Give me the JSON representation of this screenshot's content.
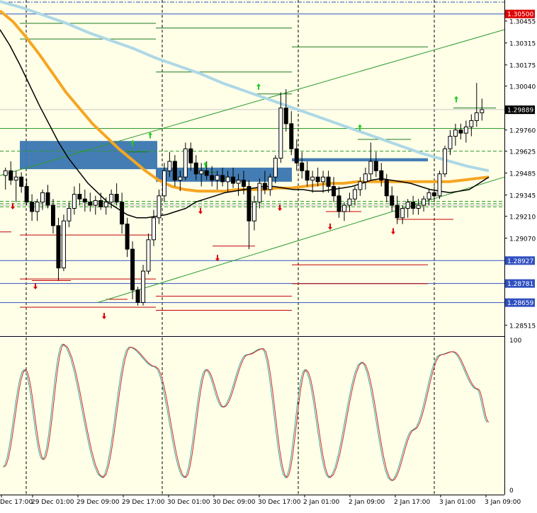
{
  "chart_data": {
    "type": "candlestick",
    "colors": {
      "background": "#FFFFE8",
      "bull_body": "#FFFFFF",
      "bear_body": "#000000",
      "wick": "#000000",
      "ma_fast": "#000000",
      "ma_mid": "#F5A623",
      "ma_slow": "#ADD8E6",
      "zone": "#3A76B0",
      "support_line": "#C00000",
      "resistance_line": "#1E7A1E",
      "hline_blue": "#3050C0",
      "trend_line": "#2E9A2E",
      "up_arrow": "#22CC22",
      "down_arrow": "#DD0000",
      "stoch_main": "#DD2222",
      "stoch_signal": "#33A8A0",
      "price_badge_red": "#DD0000",
      "price_badge_blue": "#3050C0",
      "price_badge_black": "#000000"
    },
    "price_axis": {
      "ylim": [
        1.2845,
        1.3058
      ],
      "ticks": [
        "1.30455",
        "1.30315",
        "1.30175",
        "1.30040",
        "1.29760",
        "1.29625",
        "1.29485",
        "1.29345",
        "1.29210",
        "1.29070",
        "1.28515"
      ],
      "badges": [
        {
          "label": "1.30500",
          "value": 1.305,
          "style": "red"
        },
        {
          "label": "1.29889",
          "value": 1.29889,
          "style": "black"
        },
        {
          "label": "1.28927",
          "value": 1.28927,
          "style": "blue"
        },
        {
          "label": "1.28781",
          "value": 1.28781,
          "style": "blue"
        },
        {
          "label": "1.28659",
          "value": 1.28659,
          "style": "blue"
        }
      ]
    },
    "time_axis": {
      "labels": [
        "Dec 17:00",
        "29 Dec 01:00",
        "29 Dec 09:00",
        "29 Dec 17:00",
        "30 Dec 01:00",
        "30 Dec 09:00",
        "30 Dec 17:00",
        "2 Jan 01:00",
        "2 Jan 09:00",
        "2 Jan 17:00",
        "3 Jan 01:00",
        "3 Jan 09:00"
      ]
    },
    "stochastic": {
      "ylim": [
        0,
        100
      ],
      "ticks": [
        "100",
        "0"
      ]
    },
    "candles": [
      [
        1.2947,
        1.2952,
        1.2938,
        1.295
      ],
      [
        1.295,
        1.2956,
        1.2941,
        1.2944
      ],
      [
        1.2944,
        1.295,
        1.293,
        1.2946
      ],
      [
        1.2946,
        1.2949,
        1.2936,
        1.294
      ],
      [
        1.294,
        1.2945,
        1.2928,
        1.293
      ],
      [
        1.293,
        1.2935,
        1.2918,
        1.2924
      ],
      [
        1.2924,
        1.2932,
        1.2918,
        1.293
      ],
      [
        1.293,
        1.2938,
        1.2925,
        1.2936
      ],
      [
        1.2936,
        1.2941,
        1.2926,
        1.2928
      ],
      [
        1.2928,
        1.2932,
        1.291,
        1.2915
      ],
      [
        1.2915,
        1.292,
        1.288,
        1.2888
      ],
      [
        1.2888,
        1.2922,
        1.2886,
        1.2918
      ],
      [
        1.2918,
        1.293,
        1.2914,
        1.2926
      ],
      [
        1.2926,
        1.294,
        1.2922,
        1.2935
      ],
      [
        1.2935,
        1.2942,
        1.2928,
        1.2932
      ],
      [
        1.2932,
        1.2938,
        1.2924,
        1.293
      ],
      [
        1.293,
        1.2936,
        1.2924,
        1.2928
      ],
      [
        1.2928,
        1.2934,
        1.2922,
        1.2931
      ],
      [
        1.2931,
        1.2936,
        1.2925,
        1.2927
      ],
      [
        1.2927,
        1.2933,
        1.2922,
        1.293
      ],
      [
        1.293,
        1.2938,
        1.2926,
        1.2935
      ],
      [
        1.2935,
        1.2942,
        1.2928,
        1.293
      ],
      [
        1.293,
        1.2936,
        1.291,
        1.2916
      ],
      [
        1.2916,
        1.292,
        1.2895,
        1.29
      ],
      [
        1.29,
        1.2905,
        1.2868,
        1.2874
      ],
      [
        1.2874,
        1.2876,
        1.2864,
        1.2866
      ],
      [
        1.2866,
        1.289,
        1.2864,
        1.2886
      ],
      [
        1.2886,
        1.291,
        1.2884,
        1.2906
      ],
      [
        1.2906,
        1.2925,
        1.2902,
        1.292
      ],
      [
        1.292,
        1.2938,
        1.2916,
        1.2934
      ],
      [
        1.2934,
        1.2955,
        1.293,
        1.295
      ],
      [
        1.295,
        1.2962,
        1.2946,
        1.2956
      ],
      [
        1.2956,
        1.296,
        1.294,
        1.2944
      ],
      [
        1.2944,
        1.295,
        1.2937,
        1.2946
      ],
      [
        1.2946,
        1.2968,
        1.2944,
        1.2964
      ],
      [
        1.2964,
        1.2968,
        1.295,
        1.2955
      ],
      [
        1.2955,
        1.296,
        1.2944,
        1.2948
      ],
      [
        1.2948,
        1.2955,
        1.294,
        1.295
      ],
      [
        1.295,
        1.2956,
        1.2944,
        1.2947
      ],
      [
        1.2947,
        1.2953,
        1.294,
        1.2944
      ],
      [
        1.2944,
        1.295,
        1.2938,
        1.2947
      ],
      [
        1.2947,
        1.2952,
        1.294,
        1.2943
      ],
      [
        1.2943,
        1.295,
        1.2936,
        1.2946
      ],
      [
        1.2946,
        1.2952,
        1.2939,
        1.2942
      ],
      [
        1.2942,
        1.2948,
        1.2934,
        1.2944
      ],
      [
        1.2944,
        1.295,
        1.2935,
        1.294
      ],
      [
        1.294,
        1.2944,
        1.29,
        1.2918
      ],
      [
        1.2918,
        1.2934,
        1.2912,
        1.293
      ],
      [
        1.293,
        1.2945,
        1.2926,
        1.2942
      ],
      [
        1.2942,
        1.295,
        1.2935,
        1.2938
      ],
      [
        1.2938,
        1.2948,
        1.2934,
        1.2946
      ],
      [
        1.2946,
        1.296,
        1.2942,
        1.2958
      ],
      [
        1.2958,
        1.3,
        1.2955,
        1.299
      ],
      [
        1.299,
        1.3002,
        1.2975,
        1.298
      ],
      [
        1.298,
        1.2988,
        1.296,
        1.2964
      ],
      [
        1.2964,
        1.297,
        1.295,
        1.2955
      ],
      [
        1.2955,
        1.2962,
        1.2945,
        1.295
      ],
      [
        1.295,
        1.2956,
        1.294,
        1.2944
      ],
      [
        1.2944,
        1.295,
        1.2936,
        1.2946
      ],
      [
        1.2946,
        1.2952,
        1.294,
        1.2943
      ],
      [
        1.2943,
        1.295,
        1.2936,
        1.2946
      ],
      [
        1.2946,
        1.295,
        1.2936,
        1.294
      ],
      [
        1.294,
        1.2946,
        1.293,
        1.2934
      ],
      [
        1.2934,
        1.294,
        1.292,
        1.2924
      ],
      [
        1.2924,
        1.293,
        1.2918,
        1.2928
      ],
      [
        1.2928,
        1.2936,
        1.2924,
        1.2932
      ],
      [
        1.2932,
        1.294,
        1.2928,
        1.2938
      ],
      [
        1.2938,
        1.2946,
        1.2934,
        1.2943
      ],
      [
        1.2943,
        1.2952,
        1.2938,
        1.2948
      ],
      [
        1.2948,
        1.2968,
        1.2944,
        1.2956
      ],
      [
        1.2956,
        1.2962,
        1.2946,
        1.295
      ],
      [
        1.295,
        1.2955,
        1.294,
        1.2944
      ],
      [
        1.2944,
        1.2948,
        1.293,
        1.2934
      ],
      [
        1.2934,
        1.294,
        1.2924,
        1.2928
      ],
      [
        1.2928,
        1.2934,
        1.2916,
        1.292
      ],
      [
        1.292,
        1.2928,
        1.2916,
        1.2926
      ],
      [
        1.2926,
        1.2932,
        1.292,
        1.293
      ],
      [
        1.293,
        1.2934,
        1.2922,
        1.2926
      ],
      [
        1.2926,
        1.2932,
        1.2922,
        1.2928
      ],
      [
        1.2928,
        1.2934,
        1.2924,
        1.2932
      ],
      [
        1.2932,
        1.2938,
        1.2928,
        1.2936
      ],
      [
        1.2936,
        1.294,
        1.293,
        1.2934
      ],
      [
        1.2934,
        1.295,
        1.2932,
        1.2948
      ],
      [
        1.2948,
        1.2966,
        1.2946,
        1.2964
      ],
      [
        1.2964,
        1.2976,
        1.296,
        1.2972
      ],
      [
        1.2972,
        1.298,
        1.2966,
        1.2976
      ],
      [
        1.2976,
        1.298,
        1.297,
        1.2974
      ],
      [
        1.2974,
        1.2982,
        1.2968,
        1.2978
      ],
      [
        1.2978,
        1.2986,
        1.2972,
        1.2982
      ],
      [
        1.2982,
        1.3006,
        1.2978,
        1.2987
      ],
      [
        1.2987,
        1.2996,
        1.2982,
        1.2989
      ]
    ],
    "ma_fast": [
      1.304,
      1.303,
      1.3018,
      1.3005,
      1.2992,
      1.298,
      1.2968,
      1.2958,
      1.295,
      1.2942,
      1.2936,
      1.293,
      1.2926,
      1.2922,
      1.292,
      1.292,
      1.2921,
      1.2922,
      1.2924,
      1.2926,
      1.293,
      1.2932,
      1.2934,
      1.2936,
      1.2937,
      1.2938,
      1.2939,
      1.294,
      1.294,
      1.2939,
      1.2938,
      1.2938,
      1.2937,
      1.2937,
      1.2938,
      1.2939,
      1.294,
      1.2942,
      1.2944,
      1.2945,
      1.2944,
      1.2943,
      1.2942,
      1.294,
      1.2938,
      1.2937,
      1.2936,
      1.2937,
      1.2938,
      1.2942,
      1.2946
    ],
    "ma_mid": [
      1.3052,
      1.3045,
      1.3035,
      1.3024,
      1.3012,
      1.3,
      1.299,
      1.298,
      1.2972,
      1.2964,
      1.2957,
      1.295,
      1.2944,
      1.294,
      1.2938,
      1.2937,
      1.2937,
      1.2937,
      1.2938,
      1.2938,
      1.2938,
      1.2939,
      1.2939,
      1.294,
      1.2941,
      1.2942,
      1.2942,
      1.2943,
      1.2943,
      1.2943,
      1.2943,
      1.2943,
      1.2943,
      1.2943,
      1.2943,
      1.2944,
      1.2945,
      1.2946
    ],
    "ma_slow": [
      1.3058,
      1.3054,
      1.3049,
      1.3044,
      1.3038,
      1.3033,
      1.3028,
      1.3022,
      1.3017,
      1.3012,
      1.3006,
      1.3001,
      1.2996,
      1.2991,
      1.2986,
      1.2981,
      1.2976,
      1.2971,
      1.2966,
      1.2961,
      1.2957,
      1.2953,
      1.295
    ],
    "zones": [
      {
        "x0": 28,
        "x1": 222,
        "y0": 1.2969,
        "y1": 1.2951
      },
      {
        "x0": 220,
        "x1": 412,
        "y0": 1.2952,
        "y1": 1.2943
      },
      {
        "x0": 412,
        "x1": 604,
        "y0": 1.2958,
        "y1": 1.2956
      }
    ],
    "hlines": [
      {
        "value": 1.305,
        "color": "blue",
        "x0": 0,
        "x1": 712
      },
      {
        "value": 1.28927,
        "color": "blue",
        "x0": 0,
        "x1": 712
      },
      {
        "value": 1.28781,
        "color": "blue",
        "x0": 0,
        "x1": 712
      },
      {
        "value": 1.28659,
        "color": "blue",
        "x0": 0,
        "x1": 712
      }
    ]
  }
}
